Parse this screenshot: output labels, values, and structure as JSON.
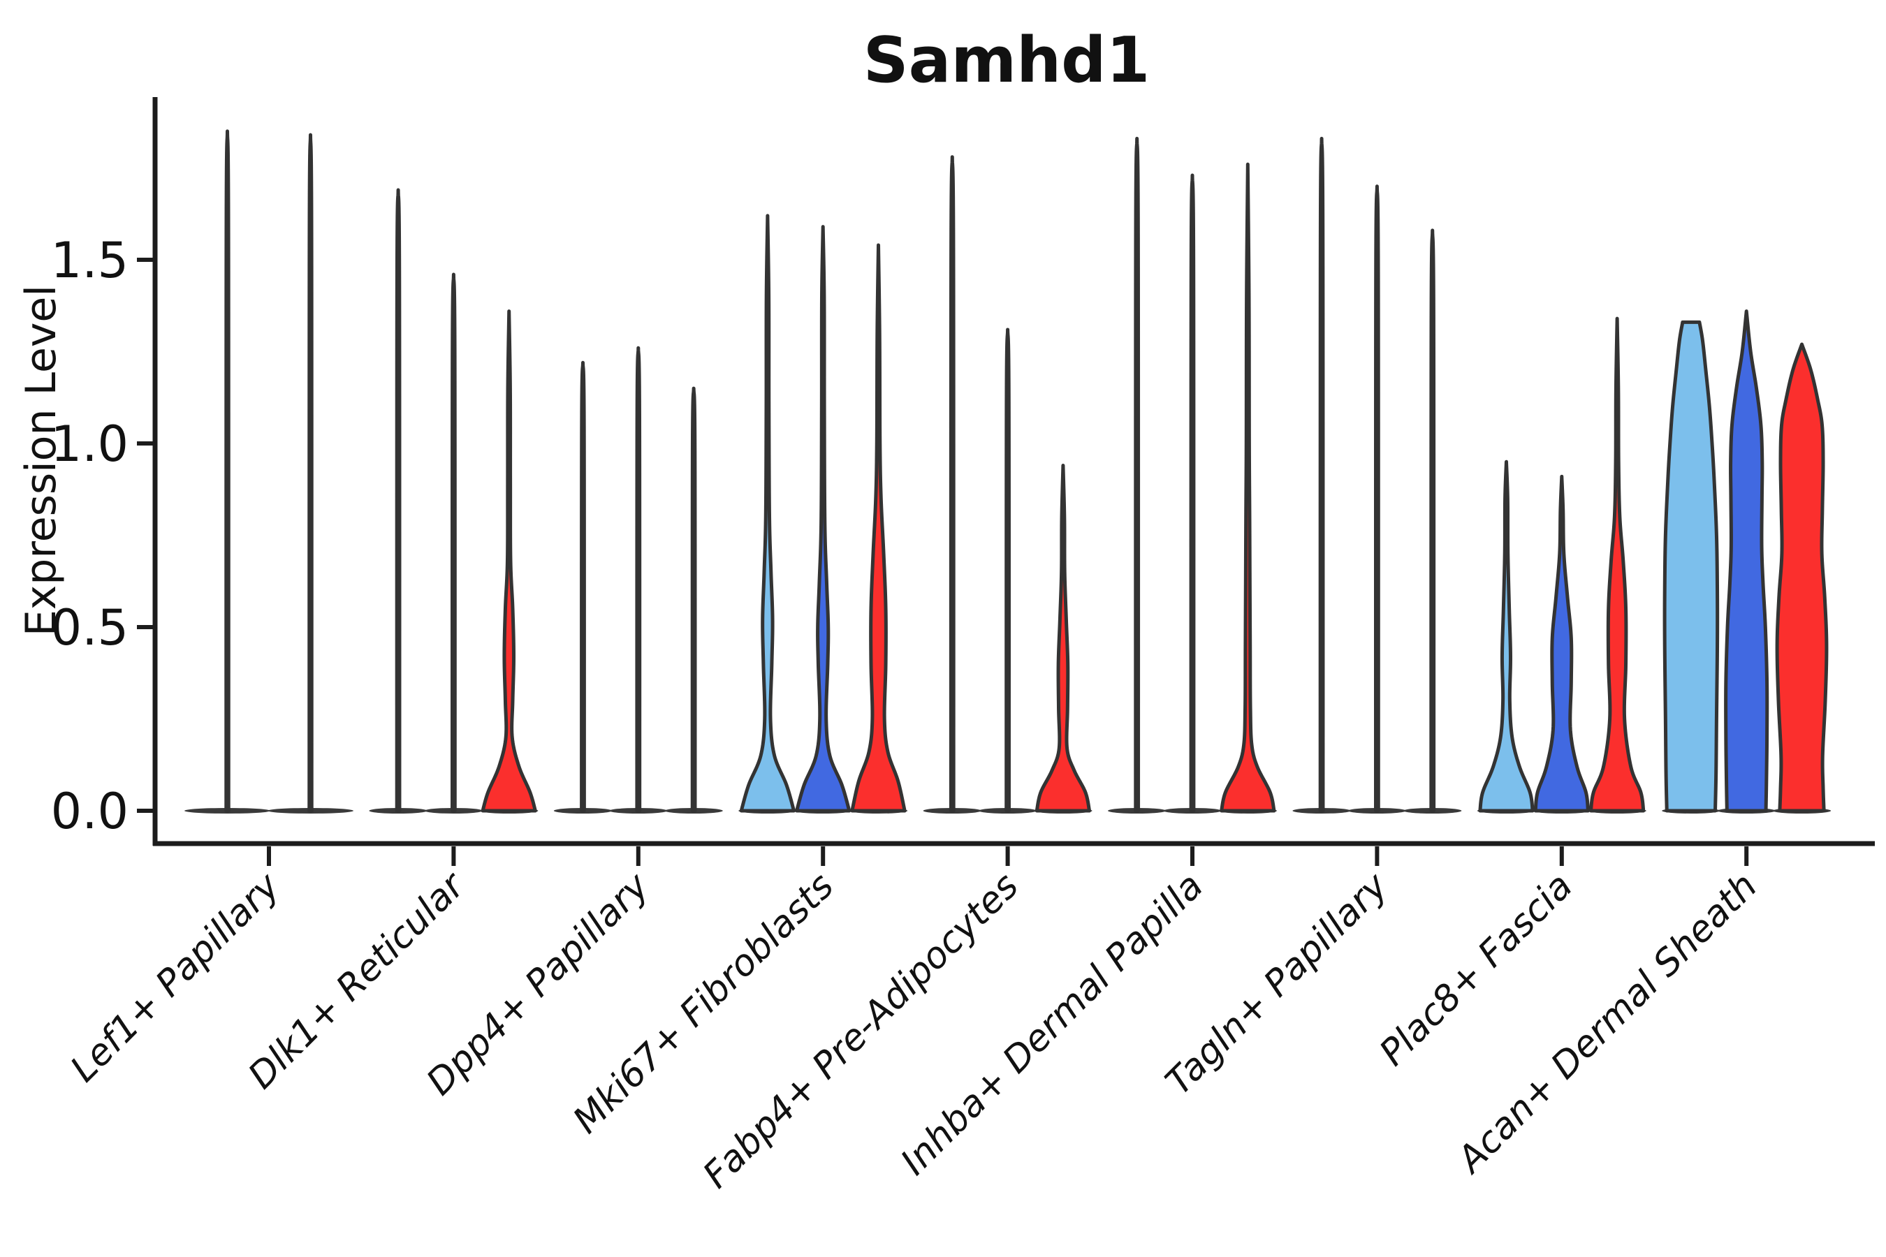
{
  "title": "Samhd1",
  "ylabel": "Expression Level",
  "yticks": [
    {
      "value": 0.0,
      "label": "0.0"
    },
    {
      "value": 0.5,
      "label": "0.5"
    },
    {
      "value": 1.0,
      "label": "1.0"
    },
    {
      "value": 1.5,
      "label": "1.5"
    }
  ],
  "colors": {
    "series": [
      "#7CBFEC",
      "#4169E1",
      "#FB2F2D"
    ],
    "outline": "#333333",
    "baseline": "#3a3a3a",
    "axis": "#1c1c1c",
    "text": "#111111"
  },
  "chart_data": {
    "type": "violin",
    "title": "Samhd1",
    "xlabel": "",
    "ylabel": "Expression Level",
    "ylim": [
      0,
      1.95
    ],
    "grid": false,
    "legend": "none",
    "n_series_colors": 3,
    "categories": [
      "Lef1+ Papillary",
      "Dlk1+ Reticular",
      "Dpp4+ Papillary",
      "Mki67+ Fibroblasts",
      "Fabp4+ Pre-Adipocytes",
      "Inhba+ Dermal Papilla",
      "Tagln+ Papillary",
      "Plac8+ Fascia",
      "Acan+ Dermal Sheath"
    ],
    "groups": [
      {
        "category": "Lef1+ Papillary",
        "violins": [
          {
            "series": 0,
            "max": 1.85,
            "profile": [
              [
                0,
                0.03
              ],
              [
                1.57,
                0.027
              ],
              [
                1.85,
                0
              ]
            ]
          },
          {
            "series": 1,
            "max": 1.84,
            "profile": [
              [
                0,
                0.03
              ],
              [
                1.56,
                0.027
              ],
              [
                1.84,
                0
              ]
            ]
          }
        ]
      },
      {
        "category": "Dlk1+ Reticular",
        "violins": [
          {
            "series": 0,
            "max": 1.69,
            "profile": [
              [
                0,
                0.05
              ],
              [
                1.44,
                0.045
              ],
              [
                1.69,
                0
              ]
            ]
          },
          {
            "series": 1,
            "max": 1.46,
            "profile": [
              [
                0,
                0.05
              ],
              [
                1.24,
                0.045
              ],
              [
                1.46,
                0
              ]
            ]
          },
          {
            "series": 2,
            "max": 1.36,
            "profile": [
              [
                0,
                1
              ],
              [
                0.05,
                0.8
              ],
              [
                0.12,
                0.38
              ],
              [
                0.2,
                0.12
              ],
              [
                0.3,
                0.14
              ],
              [
                0.42,
                0.18
              ],
              [
                0.55,
                0.14
              ],
              [
                0.68,
                0.06
              ],
              [
                0.9,
                0.05
              ],
              [
                1.15,
                0.045
              ],
              [
                1.36,
                0
              ]
            ]
          }
        ]
      },
      {
        "category": "Dpp4+ Papillary",
        "violins": [
          {
            "series": 0,
            "max": 1.22,
            "profile": [
              [
                0,
                0.05
              ],
              [
                1.04,
                0.045
              ],
              [
                1.22,
                0
              ]
            ]
          },
          {
            "series": 1,
            "max": 1.26,
            "profile": [
              [
                0,
                0.05
              ],
              [
                1.07,
                0.045
              ],
              [
                1.26,
                0
              ]
            ]
          },
          {
            "series": 2,
            "max": 1.15,
            "profile": [
              [
                0,
                0.05
              ],
              [
                0.98,
                0.045
              ],
              [
                1.15,
                0
              ]
            ]
          }
        ]
      },
      {
        "category": "Mki67+ Fibroblasts",
        "violins": [
          {
            "series": 0,
            "max": 1.62,
            "profile": [
              [
                0,
                1
              ],
              [
                0.07,
                0.72
              ],
              [
                0.15,
                0.26
              ],
              [
                0.25,
                0.11
              ],
              [
                0.4,
                0.16
              ],
              [
                0.52,
                0.19
              ],
              [
                0.65,
                0.13
              ],
              [
                0.8,
                0.07
              ],
              [
                1.1,
                0.05
              ],
              [
                1.4,
                0.045
              ],
              [
                1.62,
                0
              ]
            ]
          },
          {
            "series": 1,
            "max": 1.59,
            "profile": [
              [
                0,
                1
              ],
              [
                0.07,
                0.72
              ],
              [
                0.15,
                0.26
              ],
              [
                0.25,
                0.12
              ],
              [
                0.4,
                0.18
              ],
              [
                0.5,
                0.2
              ],
              [
                0.62,
                0.14
              ],
              [
                0.78,
                0.07
              ],
              [
                1.1,
                0.05
              ],
              [
                1.4,
                0.045
              ],
              [
                1.59,
                0
              ]
            ]
          },
          {
            "series": 2,
            "max": 1.54,
            "profile": [
              [
                0,
                1
              ],
              [
                0.08,
                0.75
              ],
              [
                0.16,
                0.36
              ],
              [
                0.25,
                0.23
              ],
              [
                0.4,
                0.28
              ],
              [
                0.55,
                0.28
              ],
              [
                0.7,
                0.2
              ],
              [
                0.85,
                0.1
              ],
              [
                1,
                0.06
              ],
              [
                1.3,
                0.045
              ],
              [
                1.54,
                0
              ]
            ]
          }
        ]
      },
      {
        "category": "Fabp4+ Pre-Adipocytes",
        "violins": [
          {
            "series": 0,
            "max": 1.78,
            "profile": [
              [
                0,
                0.05
              ],
              [
                1.51,
                0.045
              ],
              [
                1.78,
                0
              ]
            ]
          },
          {
            "series": 1,
            "max": 1.31,
            "profile": [
              [
                0,
                0.05
              ],
              [
                1.11,
                0.045
              ],
              [
                1.31,
                0
              ]
            ]
          },
          {
            "series": 2,
            "max": 0.94,
            "profile": [
              [
                0,
                1
              ],
              [
                0.05,
                0.85
              ],
              [
                0.11,
                0.42
              ],
              [
                0.17,
                0.15
              ],
              [
                0.28,
                0.17
              ],
              [
                0.4,
                0.18
              ],
              [
                0.52,
                0.12
              ],
              [
                0.65,
                0.06
              ],
              [
                0.8,
                0.05
              ],
              [
                0.94,
                0
              ]
            ]
          }
        ]
      },
      {
        "category": "Inhba+ Dermal Papilla",
        "violins": [
          {
            "series": 0,
            "max": 1.83,
            "profile": [
              [
                0,
                0.05
              ],
              [
                1.56,
                0.045
              ],
              [
                1.83,
                0
              ]
            ]
          },
          {
            "series": 1,
            "max": 1.73,
            "profile": [
              [
                0,
                0.05
              ],
              [
                1.47,
                0.045
              ],
              [
                1.73,
                0
              ]
            ]
          },
          {
            "series": 2,
            "max": 1.76,
            "profile": [
              [
                0,
                1
              ],
              [
                0.05,
                0.85
              ],
              [
                0.12,
                0.36
              ],
              [
                0.18,
                0.15
              ],
              [
                0.28,
                0.1
              ],
              [
                0.45,
                0.09
              ],
              [
                0.62,
                0.08
              ],
              [
                0.8,
                0.07
              ],
              [
                1,
                0.055
              ],
              [
                1.4,
                0.045
              ],
              [
                1.76,
                0
              ]
            ]
          }
        ]
      },
      {
        "category": "Tagln+ Papillary",
        "violins": [
          {
            "series": 0,
            "max": 1.83,
            "profile": [
              [
                0,
                0.05
              ],
              [
                1.56,
                0.045
              ],
              [
                1.83,
                0
              ]
            ]
          },
          {
            "series": 1,
            "max": 1.7,
            "profile": [
              [
                0,
                0.05
              ],
              [
                1.45,
                0.045
              ],
              [
                1.7,
                0
              ]
            ]
          },
          {
            "series": 2,
            "max": 1.58,
            "profile": [
              [
                0,
                0.05
              ],
              [
                1.34,
                0.045
              ],
              [
                1.58,
                0
              ]
            ]
          }
        ]
      },
      {
        "category": "Plac8+ Fascia",
        "violins": [
          {
            "series": 0,
            "max": 0.95,
            "profile": [
              [
                0,
                1
              ],
              [
                0.05,
                0.9
              ],
              [
                0.12,
                0.5
              ],
              [
                0.2,
                0.22
              ],
              [
                0.3,
                0.13
              ],
              [
                0.42,
                0.16
              ],
              [
                0.55,
                0.11
              ],
              [
                0.7,
                0.06
              ],
              [
                0.85,
                0.05
              ],
              [
                0.95,
                0
              ]
            ]
          },
          {
            "series": 1,
            "max": 0.91,
            "profile": [
              [
                0,
                1
              ],
              [
                0.05,
                0.92
              ],
              [
                0.12,
                0.58
              ],
              [
                0.22,
                0.33
              ],
              [
                0.35,
                0.36
              ],
              [
                0.47,
                0.36
              ],
              [
                0.58,
                0.22
              ],
              [
                0.7,
                0.08
              ],
              [
                0.82,
                0.05
              ],
              [
                0.91,
                0
              ]
            ]
          },
          {
            "series": 2,
            "max": 1.34,
            "profile": [
              [
                0,
                1
              ],
              [
                0.05,
                0.9
              ],
              [
                0.12,
                0.52
              ],
              [
                0.25,
                0.28
              ],
              [
                0.4,
                0.33
              ],
              [
                0.55,
                0.33
              ],
              [
                0.68,
                0.23
              ],
              [
                0.8,
                0.1
              ],
              [
                0.95,
                0.055
              ],
              [
                1.15,
                0.045
              ],
              [
                1.34,
                0
              ]
            ]
          }
        ]
      },
      {
        "category": "Acan+ Dermal Sheath",
        "violins": [
          {
            "series": 0,
            "max": 1.33,
            "profile": [
              [
                0,
                0.92
              ],
              [
                0.1,
                0.95
              ],
              [
                0.25,
                0.97
              ],
              [
                0.45,
                1
              ],
              [
                0.6,
                1
              ],
              [
                0.75,
                0.97
              ],
              [
                0.9,
                0.88
              ],
              [
                1,
                0.8
              ],
              [
                1.1,
                0.7
              ],
              [
                1.2,
                0.56
              ],
              [
                1.28,
                0.44
              ],
              [
                1.33,
                0.32
              ]
            ]
          },
          {
            "series": 1,
            "max": 1.36,
            "profile": [
              [
                0,
                0.74
              ],
              [
                0.08,
                0.76
              ],
              [
                0.2,
                0.78
              ],
              [
                0.35,
                0.78
              ],
              [
                0.5,
                0.72
              ],
              [
                0.62,
                0.63
              ],
              [
                0.72,
                0.58
              ],
              [
                0.85,
                0.59
              ],
              [
                0.95,
                0.6
              ],
              [
                1.05,
                0.55
              ],
              [
                1.15,
                0.38
              ],
              [
                1.25,
                0.16
              ],
              [
                1.36,
                0
              ]
            ]
          },
          {
            "series": 2,
            "max": 1.27,
            "profile": [
              [
                0,
                0.84
              ],
              [
                0.06,
                0.81
              ],
              [
                0.15,
                0.79
              ],
              [
                0.3,
                0.89
              ],
              [
                0.45,
                0.94
              ],
              [
                0.58,
                0.87
              ],
              [
                0.7,
                0.76
              ],
              [
                0.82,
                0.78
              ],
              [
                0.95,
                0.81
              ],
              [
                1.05,
                0.77
              ],
              [
                1.12,
                0.6
              ],
              [
                1.2,
                0.34
              ],
              [
                1.27,
                0
              ]
            ]
          }
        ]
      }
    ]
  }
}
